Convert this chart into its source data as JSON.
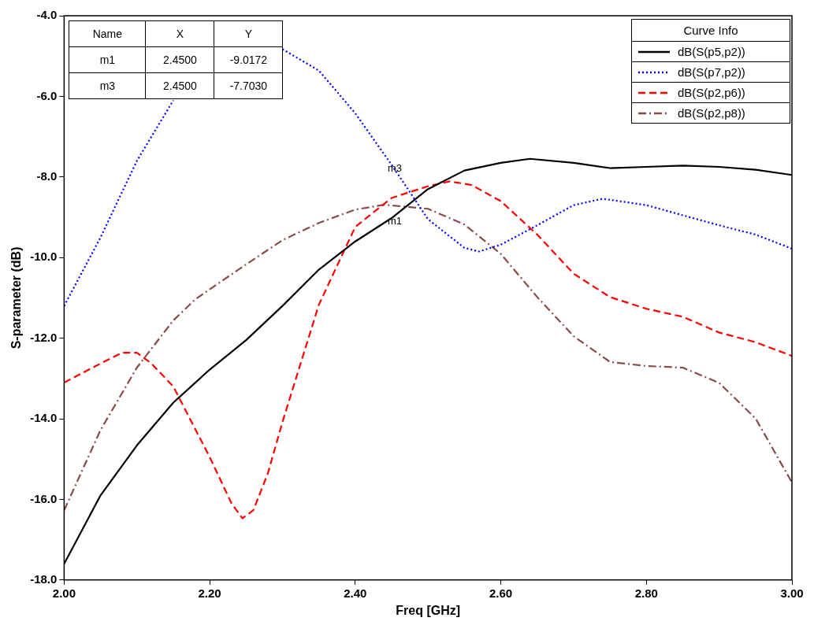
{
  "chart_data": {
    "type": "line",
    "xlabel": "Freq [GHz]",
    "ylabel": "S-parameter (dB)",
    "legend_title": "Curve Info",
    "legend": "top right",
    "grid": false,
    "marker": "none",
    "xlim": [
      2,
      3
    ],
    "xticks": [
      {
        "value": 2,
        "label": "2.00"
      },
      {
        "value": 2.2,
        "label": "2.20"
      },
      {
        "value": 2.4,
        "label": "2.40"
      },
      {
        "value": 2.6,
        "label": "2.60"
      },
      {
        "value": 2.8,
        "label": "2.80"
      },
      {
        "value": 3,
        "label": "3.00"
      }
    ],
    "ylim": [
      -18,
      -4
    ],
    "yticks": [
      {
        "value": -18,
        "label": "-18.0"
      },
      {
        "value": -16,
        "label": "-16.0"
      },
      {
        "value": -14,
        "label": "-14.0"
      },
      {
        "value": -12,
        "label": "-12.0"
      },
      {
        "value": -10,
        "label": "-10.0"
      },
      {
        "value": -8,
        "label": "-8.0"
      },
      {
        "value": -6,
        "label": "-6.0"
      },
      {
        "value": -4,
        "label": "-4.0"
      }
    ],
    "series": [
      {
        "name": "dB(S(p5,p2))",
        "color": "#000000",
        "line_style": "solid",
        "x": [
          2,
          2.05,
          2.1,
          2.15,
          2.2,
          2.25,
          2.3,
          2.35,
          2.4,
          2.45,
          2.5,
          2.55,
          2.6,
          2.64,
          2.7,
          2.75,
          2.8,
          2.85,
          2.9,
          2.95,
          3
        ],
        "values": [
          -17.6,
          -15.9,
          -14.66,
          -13.6,
          -12.78,
          -12.05,
          -11.2,
          -10.3,
          -9.6,
          -9.02,
          -8.3,
          -7.84,
          -7.65,
          -7.55,
          -7.65,
          -7.78,
          -7.75,
          -7.72,
          -7.75,
          -7.82,
          -7.95
        ]
      },
      {
        "name": "dB(S(p7,p2))",
        "color": "#0000ff",
        "line_style": "dotted",
        "x": [
          2,
          2.05,
          2.1,
          2.15,
          2.17,
          2.2,
          2.25,
          2.28,
          2.3,
          2.35,
          2.4,
          2.45,
          2.5,
          2.55,
          2.57,
          2.6,
          2.65,
          2.7,
          2.74,
          2.8,
          2.85,
          2.9,
          2.95,
          3
        ],
        "values": [
          -11.2,
          -9.5,
          -7.6,
          -6.1,
          null,
          null,
          null,
          null,
          -4.83,
          -5.36,
          -6.42,
          -7.7,
          -9.05,
          -9.76,
          -9.85,
          -9.68,
          -9.2,
          -8.7,
          -8.54,
          -8.7,
          -8.95,
          -9.2,
          -9.43,
          -9.78
        ]
      },
      {
        "name": "dB(S(p2,p6))",
        "color": "#ff0000",
        "line_style": "dashed",
        "x": [
          2,
          2.05,
          2.08,
          2.1,
          2.12,
          2.15,
          2.2,
          2.23,
          2.245,
          2.26,
          2.28,
          2.3,
          2.35,
          2.4,
          2.45,
          2.5,
          2.53,
          2.56,
          2.6,
          2.65,
          2.7,
          2.75,
          2.8,
          2.85,
          2.9,
          2.95,
          3
        ],
        "values": [
          -13.1,
          -12.63,
          -12.36,
          -12.36,
          -12.63,
          -13.2,
          -14.95,
          -16.1,
          -16.47,
          -16.27,
          -15.35,
          -14.08,
          -11.17,
          -9.24,
          -8.52,
          -8.23,
          -8.11,
          -8.2,
          -8.6,
          -9.43,
          -10.4,
          -10.98,
          -11.27,
          -11.47,
          -11.86,
          -12.1,
          -12.44
        ]
      },
      {
        "name": "dB(S(p2,p8))",
        "color": "#8b4a4a",
        "line_style": "dashdot",
        "x": [
          2,
          2.05,
          2.1,
          2.15,
          2.18,
          2.2,
          2.25,
          2.3,
          2.35,
          2.4,
          2.44,
          2.5,
          2.55,
          2.6,
          2.65,
          2.7,
          2.75,
          2.8,
          2.85,
          2.9,
          2.95,
          3
        ],
        "values": [
          -16.27,
          -14.28,
          -12.73,
          -11.56,
          -11.04,
          -10.79,
          -10.17,
          -9.57,
          -9.14,
          -8.81,
          -8.69,
          -8.79,
          -9.18,
          -9.91,
          -10.98,
          -11.95,
          -12.59,
          -12.69,
          -12.73,
          -13.11,
          -13.99,
          -15.58
        ]
      }
    ],
    "annotations": [
      "Name",
      "X",
      "Y",
      "m1",
      "2.4500",
      "-9.0172",
      "m3",
      "2.4500",
      "-7.7030",
      {
        "text": "m1",
        "x": 2.45,
        "y": -9.0172
      },
      {
        "text": "m3",
        "x": 2.45,
        "y": -7.703
      }
    ]
  }
}
